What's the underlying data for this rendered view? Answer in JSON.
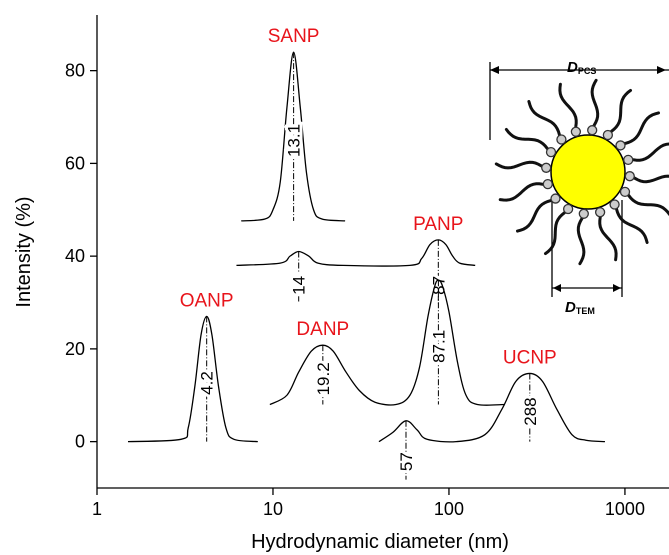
{
  "chart_data": {
    "type": "line",
    "xlabel": "Hydrodynamic diameter (nm)",
    "ylabel": "Intensity (%)",
    "xscale": "log",
    "xlim": [
      1,
      1780
    ],
    "ylim": [
      -10,
      92
    ],
    "xticks": [
      1,
      10,
      100,
      1000
    ],
    "yticks": [
      0,
      20,
      40,
      60,
      80
    ],
    "color": "#000000",
    "label_color": "#e8141b",
    "series": [
      {
        "name": "SANP",
        "peaks": [
          13.1
        ],
        "x": [
          6.6,
          9,
          10,
          11,
          12,
          13.1,
          14.3,
          15.5,
          17,
          19,
          25.7
        ],
        "values": [
          47.6,
          48,
          50,
          56,
          72,
          84,
          72,
          58,
          50,
          48,
          47.6
        ]
      },
      {
        "name": "PANP",
        "peaks": [
          87,
          14
        ],
        "x": [
          6.2,
          11,
          12.5,
          14,
          16,
          18,
          25,
          60,
          70,
          78,
          87,
          96,
          105,
          115,
          141
        ],
        "values": [
          38,
          38.5,
          40,
          41,
          40,
          38.5,
          38,
          38,
          39.5,
          42.5,
          43.5,
          42.5,
          40,
          38.5,
          38
        ]
      },
      {
        "name": "OANP",
        "peaks": [
          4.2
        ],
        "x": [
          1.5,
          3,
          3.3,
          3.6,
          3.9,
          4.2,
          4.5,
          4.9,
          5.4,
          6,
          8.2
        ],
        "values": [
          0,
          0.5,
          3,
          12,
          23,
          27,
          23,
          12,
          3,
          0.5,
          0
        ]
      },
      {
        "name": "DANP",
        "peaks": [
          19.2,
          87.1
        ],
        "x": [
          9.6,
          12,
          14,
          16.5,
          19.2,
          22,
          26,
          31,
          38,
          50,
          60,
          68,
          76,
          83,
          87.1,
          92,
          100,
          112,
          125,
          145,
          208
        ],
        "values": [
          8,
          10,
          15,
          19.5,
          20.8,
          19.5,
          15,
          11,
          8.5,
          8,
          10,
          16,
          27,
          33.5,
          34.8,
          33.5,
          28,
          17,
          10,
          8,
          8
        ]
      },
      {
        "name": "UCNP",
        "peaks": [
          288,
          57
        ],
        "x": [
          40,
          48,
          57,
          66,
          75,
          110,
          160,
          200,
          240,
          288,
          340,
          410,
          500,
          600,
          770
        ],
        "values": [
          0,
          2,
          4.5,
          2.5,
          0.5,
          0,
          1.5,
          7,
          13,
          14.7,
          13,
          7,
          1.5,
          0.3,
          0
        ]
      }
    ]
  },
  "inset": {
    "top_symbol": "D",
    "top_sub": "PCS",
    "bottom_symbol": "D",
    "bottom_sub": "TEM"
  }
}
